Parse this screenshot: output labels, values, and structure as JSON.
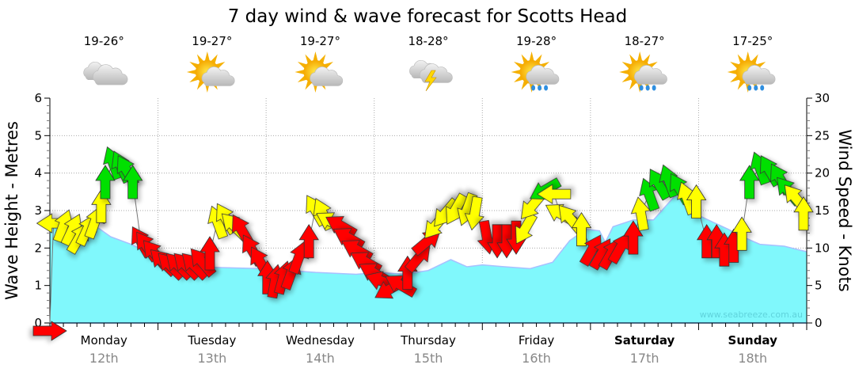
{
  "header": {
    "title": "7 day wind & wave forecast for Scotts Head"
  },
  "days": [
    {
      "name": "Monday",
      "date": "12th",
      "temp": "19-26°",
      "icon": "cloudy-icon",
      "bold": false
    },
    {
      "name": "Tuesday",
      "date": "13th",
      "temp": "19-27°",
      "icon": "partly-cloudy-icon",
      "bold": false
    },
    {
      "name": "Wednesday",
      "date": "14th",
      "temp": "19-27°",
      "icon": "partly-cloudy-icon",
      "bold": false
    },
    {
      "name": "Thursday",
      "date": "15th",
      "temp": "18-28°",
      "icon": "thunderstorm-icon",
      "bold": false
    },
    {
      "name": "Friday",
      "date": "16th",
      "temp": "19-28°",
      "icon": "sun-cloud-rain-icon",
      "bold": false
    },
    {
      "name": "Saturday",
      "date": "17th",
      "temp": "18-27°",
      "icon": "sun-cloud-rain-icon",
      "bold": true
    },
    {
      "name": "Sunday",
      "date": "18th",
      "temp": "17-25°",
      "icon": "sun-cloud-rain-icon",
      "bold": true
    }
  ],
  "watermark": "www.seabreeze.com.au",
  "colors": {
    "wave_fill": "#80f8fc",
    "wave_line": "#a8c0ff",
    "red": "#ff0000",
    "yellow": "#ffff00",
    "green": "#00e000"
  },
  "chart_data": {
    "type": "area",
    "title": "7 day wind & wave forecast for Scotts Head",
    "ylabel": "Wave Height - Metres",
    "y2label": "Wind Speed - Knots",
    "x_unit": "hours from Monday 00:00",
    "xlim": [
      0,
      168
    ],
    "ylim": [
      0,
      6
    ],
    "y2lim": [
      0,
      30
    ],
    "y_ticks": [
      "0",
      "1",
      "2",
      "3",
      "4",
      "5",
      "6"
    ],
    "y2_ticks": [
      "0",
      "5",
      "10",
      "15",
      "20",
      "25",
      "30"
    ],
    "grid": true,
    "wave_height_m": [
      [
        0,
        2.75
      ],
      [
        10,
        2.6
      ],
      [
        13.5,
        2.3
      ],
      [
        18,
        2.1
      ],
      [
        24,
        1.75
      ],
      [
        31,
        1.5
      ],
      [
        47,
        1.45
      ],
      [
        59,
        1.35
      ],
      [
        68,
        1.3
      ],
      [
        73,
        1.35
      ],
      [
        78.5,
        1.3
      ],
      [
        84,
        1.4
      ],
      [
        89,
        1.69
      ],
      [
        92.6,
        1.5
      ],
      [
        96,
        1.55
      ],
      [
        101,
        1.5
      ],
      [
        106.6,
        1.45
      ],
      [
        111.6,
        1.62
      ],
      [
        115.4,
        2.2
      ],
      [
        119,
        2.5
      ],
      [
        122,
        2.46
      ],
      [
        123.3,
        2.15
      ],
      [
        125,
        2.57
      ],
      [
        129.5,
        2.75
      ],
      [
        134,
        2.75
      ],
      [
        138.8,
        3.4
      ],
      [
        143.5,
        2.9
      ],
      [
        147,
        2.7
      ],
      [
        150.6,
        2.5
      ],
      [
        153.4,
        2.32
      ],
      [
        157.6,
        2.1
      ],
      [
        163,
        2.05
      ],
      [
        168,
        1.9
      ]
    ],
    "wind_fields": [
      "hour",
      "knots",
      "direction_deg",
      "color"
    ],
    "wind": [
      [
        0,
        0,
        90,
        "red"
      ],
      [
        0.8,
        13.3,
        270,
        "yellow"
      ],
      [
        3,
        13,
        20,
        "yellow"
      ],
      [
        5,
        12.5,
        25,
        "yellow"
      ],
      [
        6.5,
        11.4,
        30,
        "yellow"
      ],
      [
        8.3,
        12.5,
        25,
        "yellow"
      ],
      [
        10,
        13.5,
        20,
        "yellow"
      ],
      [
        11.4,
        15.6,
        0,
        "yellow"
      ],
      [
        12.3,
        18.8,
        0,
        "green"
      ],
      [
        14,
        21.4,
        340,
        "green"
      ],
      [
        15.8,
        20.9,
        335,
        "green"
      ],
      [
        17,
        20.4,
        330,
        "green"
      ],
      [
        18.4,
        18.8,
        0,
        "green"
      ],
      [
        20.2,
        10.9,
        330,
        "red"
      ],
      [
        21.4,
        10.3,
        325,
        "red"
      ],
      [
        23.2,
        9.3,
        320,
        "red"
      ],
      [
        25,
        8.2,
        315,
        "red"
      ],
      [
        26.7,
        7.7,
        315,
        "red"
      ],
      [
        28.5,
        7.7,
        315,
        "red"
      ],
      [
        30.2,
        7.7,
        315,
        "red"
      ],
      [
        32,
        7.7,
        315,
        "red"
      ],
      [
        33.7,
        8.2,
        320,
        "red"
      ],
      [
        35.5,
        9.3,
        0,
        "red"
      ],
      [
        37.2,
        13.5,
        340,
        "yellow"
      ],
      [
        39,
        14,
        330,
        "yellow"
      ],
      [
        40.8,
        13,
        315,
        "yellow"
      ],
      [
        42.5,
        12.5,
        330,
        "red"
      ],
      [
        44.8,
        9.8,
        330,
        "red"
      ],
      [
        46.6,
        8.2,
        330,
        "red"
      ],
      [
        48.3,
        6.1,
        0,
        "red"
      ],
      [
        50,
        5.6,
        10,
        "red"
      ],
      [
        51.8,
        6.1,
        15,
        "red"
      ],
      [
        53.6,
        6.7,
        20,
        "red"
      ],
      [
        55.3,
        8.8,
        20,
        "red"
      ],
      [
        57.5,
        10.9,
        0,
        "red"
      ],
      [
        58.9,
        15.1,
        330,
        "yellow"
      ],
      [
        60.6,
        14.6,
        335,
        "yellow"
      ],
      [
        62.4,
        13.5,
        300,
        "yellow"
      ],
      [
        64.5,
        13,
        300,
        "red"
      ],
      [
        66.2,
        11.4,
        300,
        "red"
      ],
      [
        68,
        9.8,
        300,
        "red"
      ],
      [
        70,
        8.2,
        300,
        "red"
      ],
      [
        71.9,
        6.7,
        300,
        "red"
      ],
      [
        73.6,
        5.6,
        290,
        "red"
      ],
      [
        75.4,
        4.5,
        240,
        "red"
      ],
      [
        77.7,
        5.1,
        300,
        "red"
      ],
      [
        79.4,
        6.7,
        0,
        "red"
      ],
      [
        82,
        8.8,
        40,
        "red"
      ],
      [
        83.8,
        10.9,
        50,
        "red"
      ],
      [
        85.6,
        13,
        220,
        "yellow"
      ],
      [
        87.7,
        14.6,
        220,
        "yellow"
      ],
      [
        90,
        15.1,
        210,
        "yellow"
      ],
      [
        92.6,
        15.1,
        200,
        "yellow"
      ],
      [
        94.3,
        14.6,
        190,
        "yellow"
      ],
      [
        97,
        11.4,
        170,
        "red"
      ],
      [
        99.3,
        10.9,
        180,
        "red"
      ],
      [
        101.4,
        10.9,
        180,
        "red"
      ],
      [
        103.5,
        11.4,
        180,
        "red"
      ],
      [
        105.4,
        12.5,
        210,
        "yellow"
      ],
      [
        107,
        15.6,
        220,
        "yellow"
      ],
      [
        109.8,
        17.7,
        240,
        "green"
      ],
      [
        111.9,
        17.2,
        270,
        "yellow"
      ],
      [
        113.3,
        14.6,
        300,
        "yellow"
      ],
      [
        115.4,
        14,
        320,
        "yellow"
      ],
      [
        118,
        12.5,
        0,
        "yellow"
      ],
      [
        120.4,
        9.8,
        30,
        "red"
      ],
      [
        122.5,
        9.3,
        30,
        "red"
      ],
      [
        124.6,
        9.3,
        30,
        "red"
      ],
      [
        126.7,
        10.1,
        30,
        "red"
      ],
      [
        129.5,
        11.4,
        0,
        "red"
      ],
      [
        131.2,
        14.6,
        350,
        "yellow"
      ],
      [
        133,
        17.2,
        340,
        "green"
      ],
      [
        135.1,
        18.6,
        330,
        "green"
      ],
      [
        137.4,
        19,
        340,
        "green"
      ],
      [
        139.7,
        18,
        330,
        "green"
      ],
      [
        141.4,
        16.7,
        340,
        "yellow"
      ],
      [
        143.5,
        16.2,
        0,
        "yellow"
      ],
      [
        145.8,
        10.9,
        0,
        "red"
      ],
      [
        148,
        10.9,
        0,
        "red"
      ],
      [
        149.7,
        9.8,
        0,
        "red"
      ],
      [
        151.8,
        10.3,
        0,
        "red"
      ],
      [
        153.6,
        11.9,
        0,
        "yellow"
      ],
      [
        155.3,
        18.8,
        0,
        "green"
      ],
      [
        157.6,
        20.7,
        340,
        "green"
      ],
      [
        159.7,
        20.4,
        330,
        "green"
      ],
      [
        162,
        19.3,
        330,
        "green"
      ],
      [
        163.8,
        17.7,
        320,
        "green"
      ],
      [
        165.5,
        16.7,
        320,
        "yellow"
      ],
      [
        167.3,
        14.6,
        0,
        "yellow"
      ]
    ]
  }
}
